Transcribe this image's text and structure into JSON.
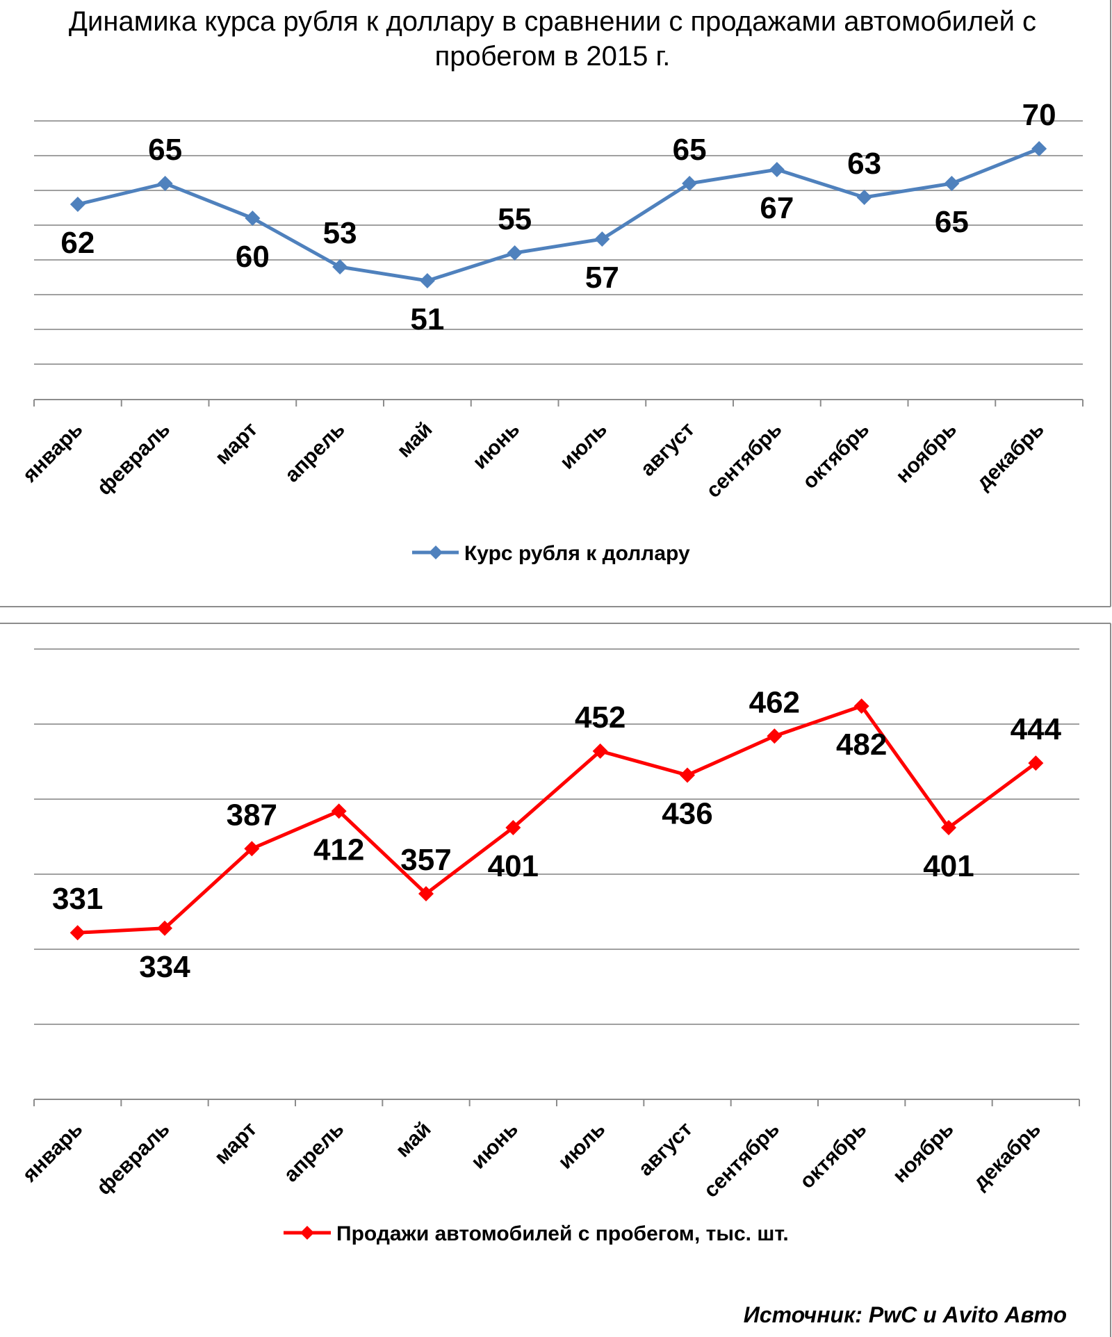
{
  "title": "Динамика курса рубля к доллару в сравнении с продажами автомобилей с пробегом в 2015 г.",
  "title_lines": [
    "Динамика курса рубля к доллару в сравнении с продажами автомобилей с",
    "пробегом в 2015 г."
  ],
  "source": "Источник: PwC и Avito Авто",
  "colors": {
    "series1": "#4f81bd",
    "series2": "#ff0000",
    "grid": "#a0a0a0"
  },
  "chart_data": [
    {
      "type": "line",
      "categories": [
        "январь",
        "февраль",
        "март",
        "апрель",
        "май",
        "июнь",
        "июль",
        "август",
        "сентябрь",
        "октябрь",
        "ноябрь",
        "декабрь"
      ],
      "series": [
        {
          "name": "Курс рубля к доллару",
          "values": [
            62,
            65,
            60,
            53,
            51,
            55,
            57,
            65,
            67,
            63,
            65,
            70
          ],
          "color": "#4f81bd",
          "marker": "diamond"
        }
      ],
      "data_labels": [
        "62",
        "65",
        "60",
        "53",
        "51",
        "55",
        "57",
        "65",
        "67",
        "63",
        "65",
        "70"
      ],
      "grid": true,
      "legend": "bottom"
    },
    {
      "type": "line",
      "categories": [
        "январь",
        "февраль",
        "март",
        "апрель",
        "май",
        "июнь",
        "июль",
        "август",
        "сентябрь",
        "октябрь",
        "ноябрь",
        "декабрь"
      ],
      "series": [
        {
          "name": "Продажи автомобилей с пробегом, тыс. шт.",
          "values": [
            331,
            334,
            387,
            412,
            357,
            401,
            452,
            436,
            462,
            482,
            401,
            444
          ],
          "color": "#ff0000",
          "marker": "diamond"
        }
      ],
      "data_labels": [
        "331",
        "334",
        "387",
        "412",
        "357",
        "401",
        "452",
        "436",
        "462",
        "482",
        "401",
        "444"
      ],
      "grid": true,
      "legend": "bottom"
    }
  ]
}
